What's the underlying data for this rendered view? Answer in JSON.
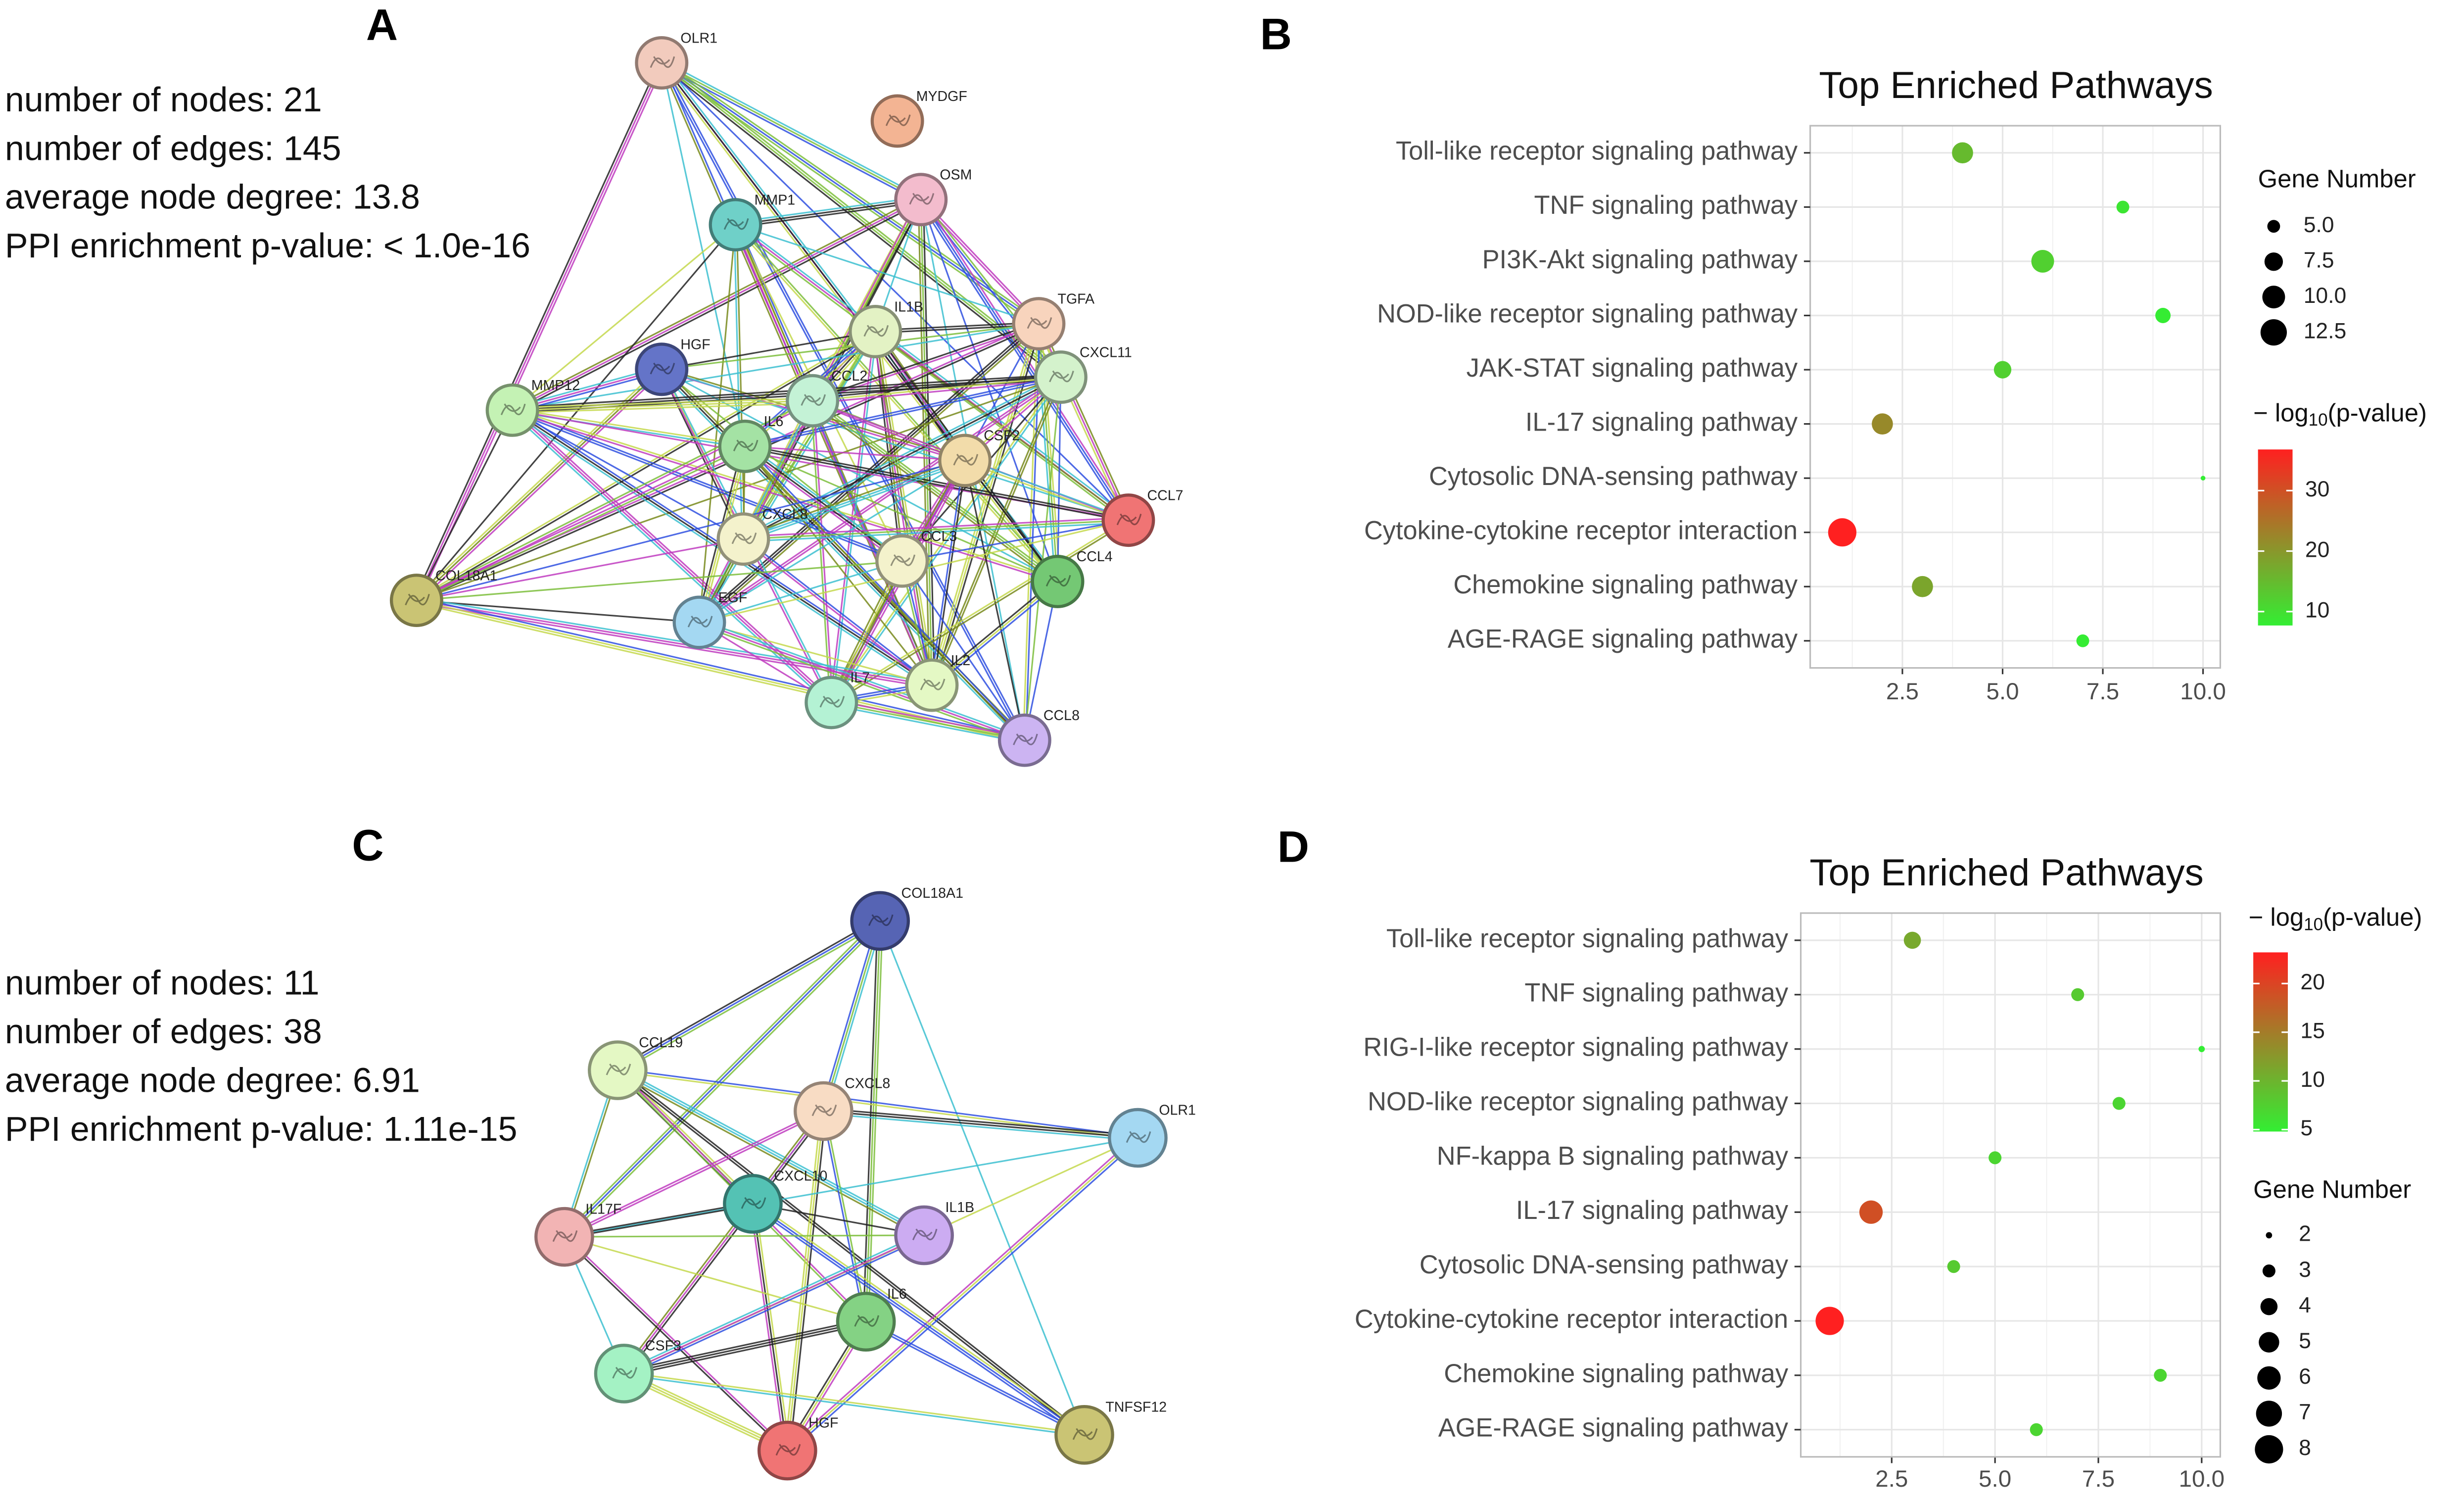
{
  "panels": [
    "A",
    "B",
    "C",
    "D"
  ],
  "networks": [
    {
      "stats": [
        "number of nodes: 21",
        "number of edges: 145",
        "average node degree: 13.8",
        "PPI enrichment p-value: < 1.0e-16"
      ],
      "nodes": [
        "OLR1",
        "MYDGF",
        "OSM",
        "MMP1",
        "IL1B",
        "TGFA",
        "HGF",
        "CXCL11",
        "MMP12",
        "CCL2",
        "IL6",
        "CSF2",
        "CCL7",
        "CXCL8",
        "CCL3",
        "CCL4",
        "COL18A1",
        "EGF",
        "IL7",
        "IL2",
        "CCL8"
      ]
    },
    {
      "stats": [
        "number of nodes: 11",
        "number of edges: 38",
        "average node degree: 6.91",
        "PPI enrichment p-value: 1.11e-15"
      ],
      "nodes": [
        "COL18A1",
        "CCL19",
        "CXCL8",
        "OLR1",
        "CXCL10",
        "IL17F",
        "IL1B",
        "IL6",
        "CSF3",
        "HGF",
        "TNFSF12"
      ]
    }
  ],
  "chart_data": [
    {
      "type": "dot",
      "title": "Top Enriched Pathways",
      "categories": [
        "Toll-like receptor signaling pathway",
        "TNF signaling pathway",
        "PI3K-Akt signaling pathway",
        "NOD-like receptor signaling pathway",
        "JAK-STAT signaling pathway",
        "IL-17 signaling pathway",
        "Cytosolic DNA-sensing pathway",
        "Cytokine-cytokine receptor interaction",
        "Chemokine signaling pathway",
        "AGE-RAGE signaling pathway"
      ],
      "values": [
        4,
        8,
        6,
        9,
        5,
        2,
        10,
        1,
        3,
        7
      ],
      "gene_numbers": [
        9,
        5,
        10,
        6,
        7,
        9,
        3,
        14,
        9,
        5
      ],
      "neg_log10_p": [
        15,
        9,
        12,
        8,
        12,
        22,
        7.7,
        36.8,
        18,
        8
      ],
      "xlim": [
        0.2,
        10.43
      ],
      "xticks": [
        2.5,
        {
          "value": 5,
          "label": "5.0"
        },
        7.5,
        {
          "value": 10,
          "label": "10.0"
        }
      ],
      "size_title": "Gene Number",
      "size_breaks": [
        {
          "value": 5,
          "label": "5.0"
        },
        7.5,
        {
          "value": 10,
          "label": "10.0"
        },
        12.5
      ],
      "color_title": {
        "prefix": "− log",
        "sub": "10",
        "suffix": "(p-value)"
      },
      "color_lim": [
        7.7,
        36.8
      ],
      "color_ticks": [
        10,
        20,
        30
      ],
      "color_low": "#33ee33",
      "color_high": "#ff2020",
      "grid": true
    },
    {
      "type": "dot",
      "title": "Top Enriched Pathways",
      "categories": [
        "Toll-like receptor signaling pathway",
        "TNF signaling pathway",
        "RIG-I-like receptor signaling pathway",
        "NOD-like receptor signaling pathway",
        "NF-kappa B signaling pathway",
        "IL-17 signaling pathway",
        "Cytosolic DNA-sensing pathway",
        "Cytokine-cytokine receptor interaction",
        "Chemokine signaling pathway",
        "AGE-RAGE signaling pathway"
      ],
      "values": [
        3,
        7,
        10,
        8,
        5,
        2,
        4,
        1,
        9,
        6
      ],
      "gene_numbers": [
        4,
        3,
        2,
        3,
        3,
        6,
        3,
        8,
        3,
        3
      ],
      "neg_log10_p": [
        11,
        8,
        4.8,
        7,
        7,
        19,
        8,
        23.2,
        7,
        7
      ],
      "xlim": [
        0.3,
        10.45
      ],
      "xticks": [
        2.5,
        {
          "value": 5,
          "label": "5.0"
        },
        7.5,
        {
          "value": 10,
          "label": "10.0"
        }
      ],
      "size_title": "Gene Number",
      "size_breaks": [
        2,
        3,
        4,
        5,
        6,
        7,
        8
      ],
      "color_title": {
        "prefix": "− log",
        "sub": "10",
        "suffix": "(p-value)"
      },
      "color_lim": [
        4.8,
        23.2
      ],
      "color_ticks": [
        5,
        10,
        15,
        20
      ],
      "color_low": "#33ee33",
      "color_high": "#ff2020",
      "grid": true
    }
  ]
}
